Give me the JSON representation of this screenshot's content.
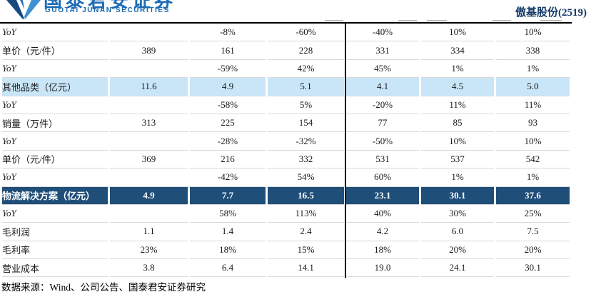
{
  "brand": {
    "logo_cn": "国泰君安证券",
    "logo_en": "GUOTAI JUNAN SECURITIES"
  },
  "header": {
    "stock_label": "傲基股份(2519)"
  },
  "table": {
    "rows": [
      {
        "label": "YoY",
        "type": "yoy",
        "values": [
          "",
          "-8%",
          "-60%",
          "-40%",
          "10%",
          "10%"
        ]
      },
      {
        "label": "单价（元/件）",
        "type": "metric",
        "values": [
          "389",
          "161",
          "228",
          "331",
          "334",
          "338"
        ]
      },
      {
        "label": "YoY",
        "type": "yoy",
        "values": [
          "",
          "-59%",
          "42%",
          "45%",
          "1%",
          "1%"
        ]
      },
      {
        "label": "其他品类（亿元）",
        "type": "highlight",
        "values": [
          "11.6",
          "4.9",
          "5.1",
          "4.1",
          "4.5",
          "5.0"
        ]
      },
      {
        "label": "YoY",
        "type": "yoy",
        "values": [
          "",
          "-58%",
          "5%",
          "-20%",
          "11%",
          "11%"
        ]
      },
      {
        "label": "销量（万件）",
        "type": "metric",
        "values": [
          "313",
          "225",
          "154",
          "77",
          "85",
          "93"
        ]
      },
      {
        "label": "YoY",
        "type": "yoy",
        "values": [
          "",
          "-28%",
          "-32%",
          "-50%",
          "10%",
          "10%"
        ]
      },
      {
        "label": "单价（元/件）",
        "type": "metric",
        "values": [
          "369",
          "216",
          "332",
          "531",
          "537",
          "542"
        ]
      },
      {
        "label": "YoY",
        "type": "yoy",
        "values": [
          "",
          "-42%",
          "54%",
          "60%",
          "1%",
          "1%"
        ]
      },
      {
        "label": "物流解决方案（亿元）",
        "type": "accent",
        "values": [
          "4.9",
          "7.7",
          "16.5",
          "23.1",
          "30.1",
          "37.6"
        ]
      },
      {
        "label": "YoY",
        "type": "yoy",
        "values": [
          "",
          "58%",
          "113%",
          "40%",
          "30%",
          "25%"
        ]
      },
      {
        "label": "毛利润",
        "type": "metric",
        "values": [
          "1.1",
          "1.4",
          "2.4",
          "4.2",
          "6.0",
          "7.5"
        ]
      },
      {
        "label": "毛利率",
        "type": "metric",
        "values": [
          "23%",
          "18%",
          "15%",
          "18%",
          "20%",
          "20%"
        ]
      },
      {
        "label": "营业成本",
        "type": "metric",
        "values": [
          "3.8",
          "6.4",
          "14.1",
          "19.0",
          "24.1",
          "30.1"
        ]
      }
    ]
  },
  "footer": {
    "source": "数据来源：Wind、公司公告、国泰君安证券研究"
  },
  "colors": {
    "accent_row": "#1F4E79",
    "highlight_row": "#C9E6F8",
    "brand_blue": "#1C6AB0",
    "logo_dark_blue": "#17497F",
    "logo_light_blue": "#3E92D2",
    "title_navy": "#163A68",
    "grid_line": "#D9D9D9"
  }
}
